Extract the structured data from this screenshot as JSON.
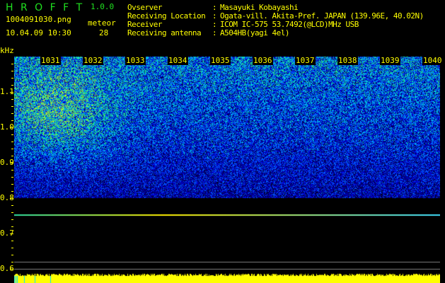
{
  "app": {
    "title": "H R O F F T",
    "version": "1.0.0"
  },
  "file": {
    "name": "1004091030.png",
    "datetime": "10.04.09 10:30"
  },
  "meteor": {
    "label": "meteor",
    "count": "28"
  },
  "info": [
    {
      "label": "Ovserver",
      "value": "Masayuki Kobayashi"
    },
    {
      "label": "Receiving Location",
      "value": "Ogata-vill. Akita-Pref. JAPAN (139.96E, 40.02N)"
    },
    {
      "label": "Receiver",
      "value": "ICOM IC-575 53.7492(@LCD)MHz USB"
    },
    {
      "label": "Receiving antenna",
      "value": "A504HB(yagi 4el)"
    }
  ],
  "spectrogram": {
    "y_unit": "kHz",
    "y_ticks": [
      "1.1",
      "1.0",
      "0.9",
      "0.8",
      "0.7",
      "0.6"
    ],
    "time_labels": [
      "1031",
      "1032",
      "1033",
      "1034",
      "1035",
      "1036",
      "1037",
      "1038",
      "1039",
      "1040"
    ],
    "carrier_khz": 0.755,
    "colors": {
      "background": "#000000",
      "text": "#ffff00",
      "title": "#20e020",
      "carrier": "#ffee00",
      "marker_lines": "#808080"
    }
  }
}
